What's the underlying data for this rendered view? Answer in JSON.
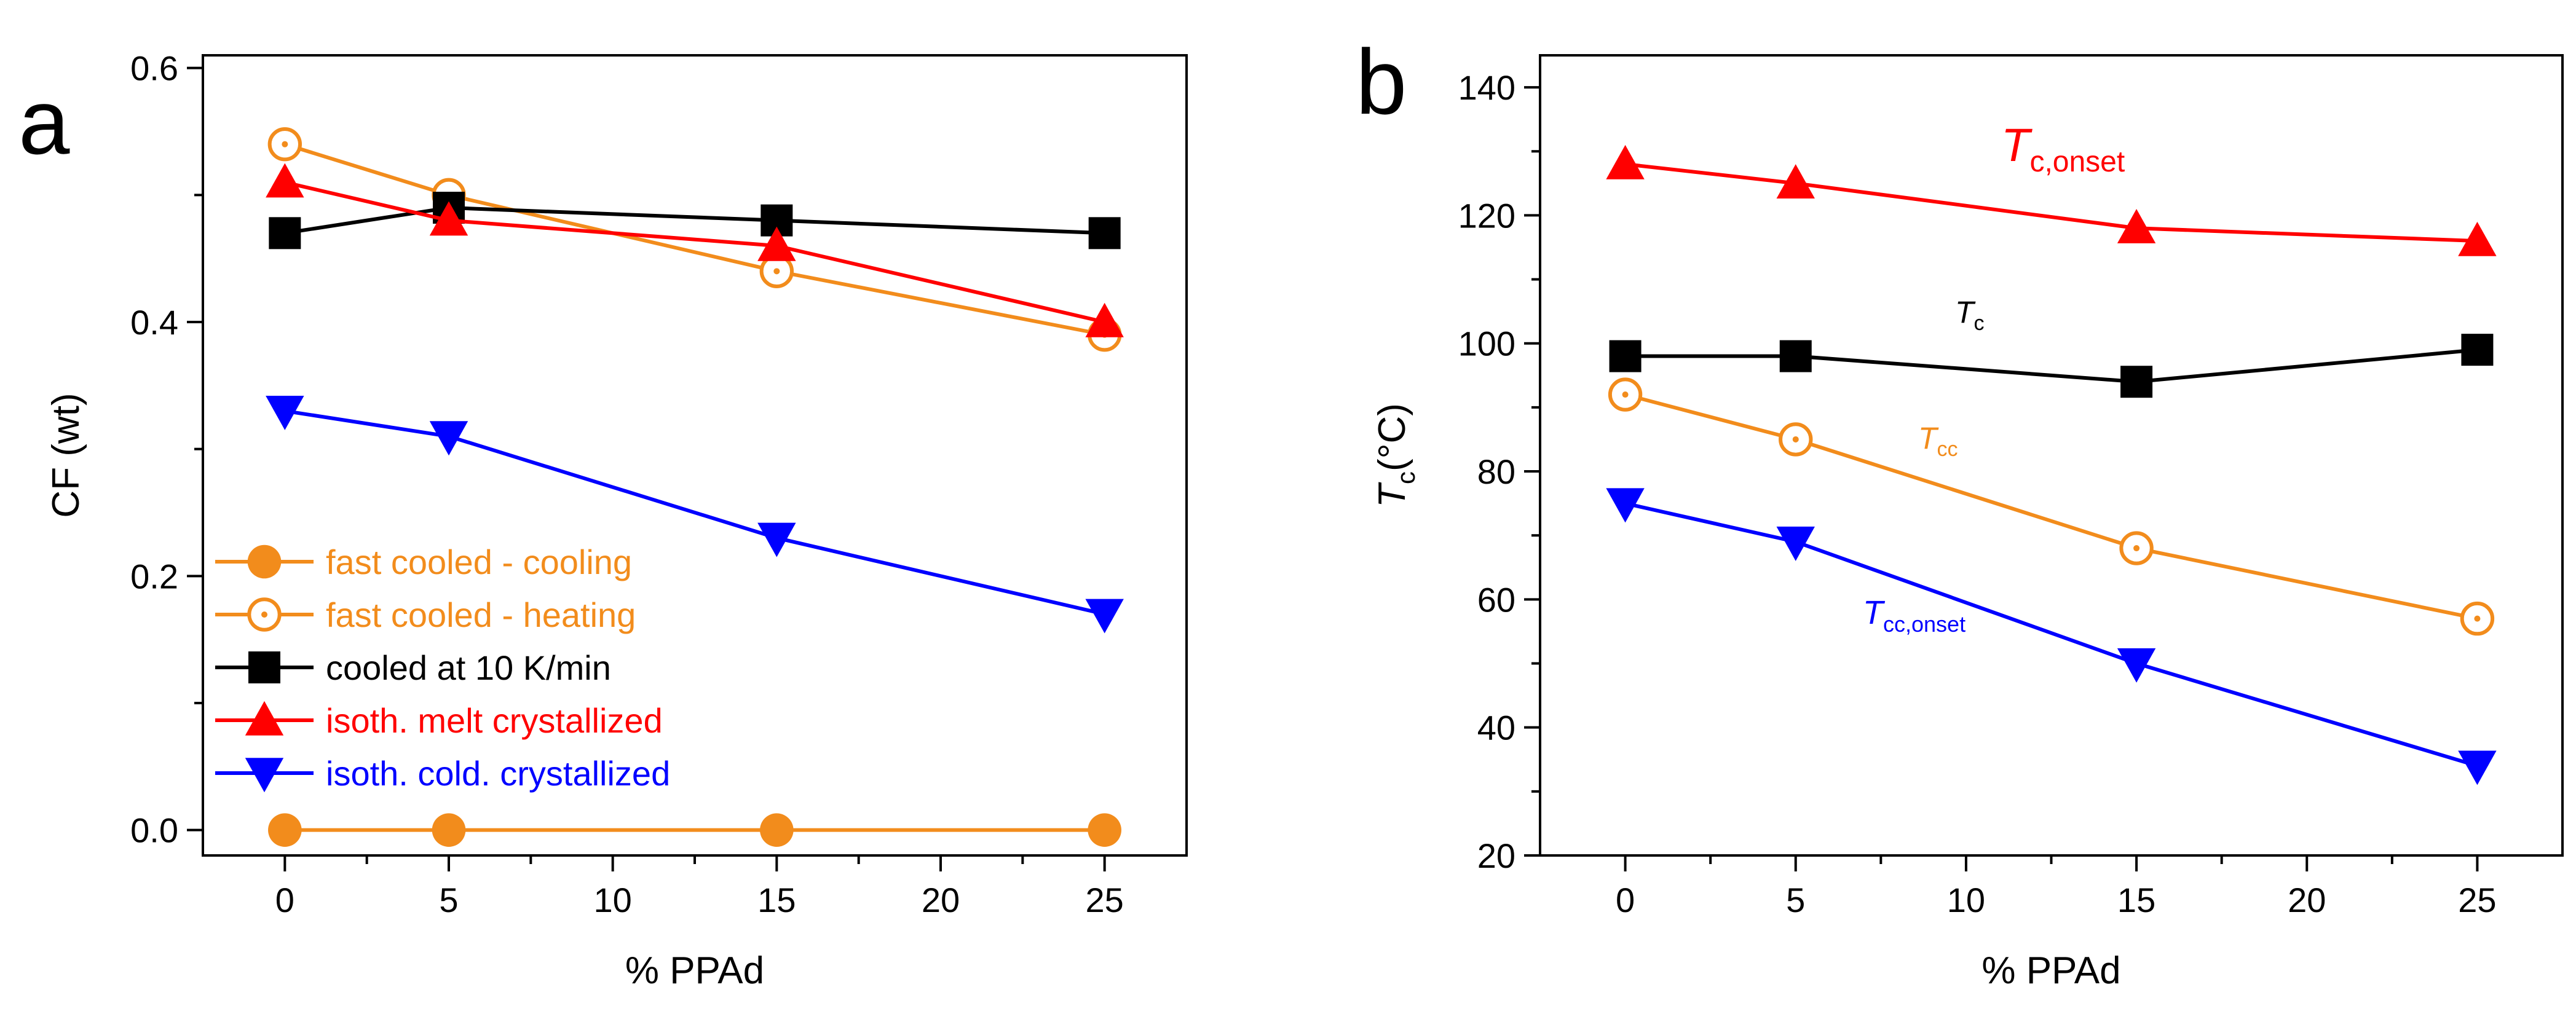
{
  "chart_data": [
    {
      "panel": "a",
      "type": "line",
      "xlabel": "% PPAd",
      "ylabel": "CF (wt)",
      "xlim": [
        -2.5,
        27.5
      ],
      "ylim": [
        -0.02,
        0.61
      ],
      "x_ticks": [
        0,
        5,
        10,
        15,
        20,
        25
      ],
      "y_ticks": [
        0.0,
        0.2,
        0.4,
        0.6
      ],
      "x_tick_labels": [
        "0",
        "5",
        "10",
        "15",
        "20",
        "25"
      ],
      "y_tick_labels": [
        "0.0",
        "0.2",
        "0.4",
        "0.6"
      ],
      "legend_position": "bottom-left",
      "series": [
        {
          "name": "fast cooled - cooling",
          "color": "#f28c1c",
          "marker": "circle-filled",
          "x": [
            0,
            5,
            15,
            25
          ],
          "values": [
            0.0,
            0.0,
            0.0,
            0.0
          ]
        },
        {
          "name": "fast cooled - heating",
          "color": "#f28c1c",
          "marker": "circle-dot",
          "x": [
            0,
            5,
            15,
            25
          ],
          "values": [
            0.54,
            0.5,
            0.44,
            0.39
          ]
        },
        {
          "name": "cooled at 10 K/min",
          "color": "#000000",
          "marker": "square",
          "x": [
            0,
            5,
            15,
            25
          ],
          "values": [
            0.47,
            0.49,
            0.48,
            0.47
          ]
        },
        {
          "name": "isoth. melt crystallized",
          "color": "#ff0000",
          "marker": "triangle-up",
          "x": [
            0,
            5,
            15,
            25
          ],
          "values": [
            0.51,
            0.48,
            0.46,
            0.4
          ]
        },
        {
          "name": "isoth. cold. crystallized",
          "color": "#0000ff",
          "marker": "triangle-down",
          "x": [
            0,
            5,
            15,
            25
          ],
          "values": [
            0.33,
            0.31,
            0.23,
            0.17
          ]
        }
      ]
    },
    {
      "panel": "b",
      "type": "line",
      "xlabel": "% PPAd",
      "ylabel_main": "T",
      "ylabel_sub": "c",
      "ylabel_unit": "(°C)",
      "xlim": [
        -2.5,
        27.5
      ],
      "ylim": [
        20,
        145
      ],
      "x_ticks": [
        0,
        5,
        10,
        15,
        20,
        25
      ],
      "y_ticks": [
        20,
        40,
        60,
        80,
        100,
        120,
        140
      ],
      "x_tick_labels": [
        "0",
        "5",
        "10",
        "15",
        "20",
        "25"
      ],
      "y_tick_labels": [
        "20",
        "40",
        "60",
        "80",
        "100",
        "120",
        "140"
      ],
      "series": [
        {
          "name": "Tc,onset",
          "label_main": "T",
          "label_sub": "c,onset",
          "color": "#ff0000",
          "marker": "triangle-up",
          "x": [
            0,
            5,
            15,
            25
          ],
          "values": [
            128,
            125,
            118,
            116
          ]
        },
        {
          "name": "Tc",
          "label_main": "T",
          "label_sub": "c",
          "color": "#000000",
          "marker": "square",
          "x": [
            0,
            5,
            15,
            25
          ],
          "values": [
            98,
            98,
            94,
            99
          ]
        },
        {
          "name": "Tcc",
          "label_main": "T",
          "label_sub": "cc",
          "color": "#f28c1c",
          "marker": "circle-dot",
          "x": [
            0,
            5,
            15,
            25
          ],
          "values": [
            92,
            85,
            68,
            57
          ]
        },
        {
          "name": "Tcc,onset",
          "label_main": "T",
          "label_sub": "cc,onset",
          "color": "#0000ff",
          "marker": "triangle-down",
          "x": [
            0,
            5,
            15,
            25
          ],
          "values": [
            75,
            69,
            50,
            34
          ]
        }
      ]
    }
  ]
}
